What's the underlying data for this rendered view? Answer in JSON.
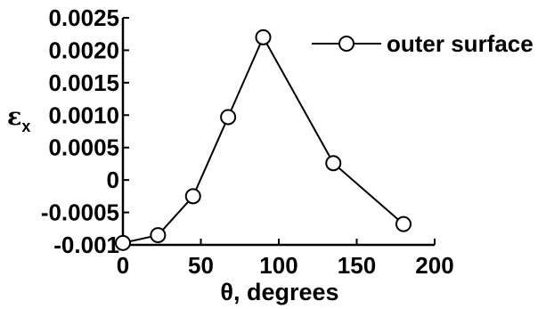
{
  "chart_data": {
    "type": "line",
    "title": "",
    "xlabel": "θ, degrees",
    "ylabel": {
      "symbol": "ε",
      "subscript": "x"
    },
    "xlim": [
      0,
      200
    ],
    "ylim": [
      -0.001,
      0.0025
    ],
    "x_ticks": [
      "0",
      "50",
      "100",
      "150",
      "200"
    ],
    "y_ticks": [
      "-0.001",
      "-0.0005",
      "0",
      "0.0005",
      "0.0010",
      "0.0015",
      "0.0020",
      "0.0025"
    ],
    "grid": false,
    "legend_position": "top-right",
    "series": [
      {
        "name": "outer surface",
        "marker": "open-circle",
        "color": "#000000",
        "x": [
          0,
          22.5,
          45,
          67.5,
          90,
          135,
          180
        ],
        "y": [
          -0.00097,
          -0.00085,
          -0.00025,
          0.00097,
          0.0022,
          0.00026,
          -0.00068
        ]
      }
    ]
  }
}
